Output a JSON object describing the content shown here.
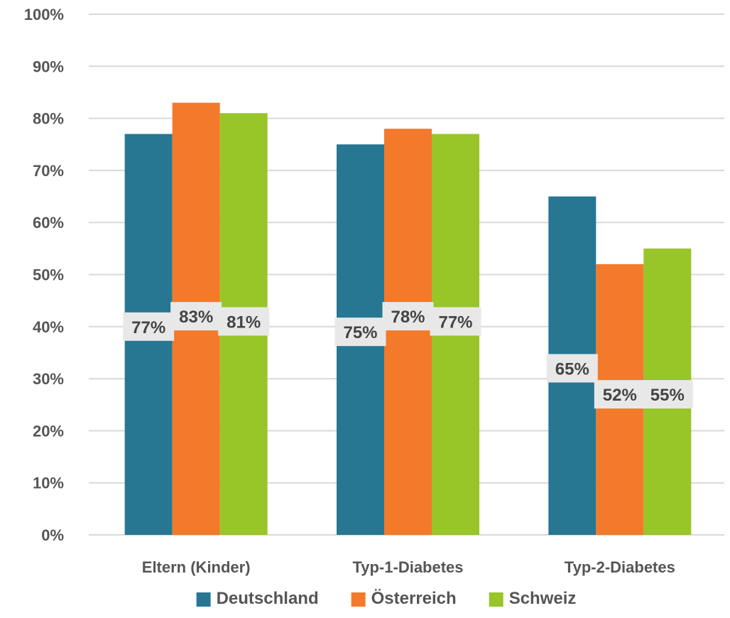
{
  "chart_data": {
    "type": "bar",
    "categories": [
      "Eltern (Kinder)",
      "Typ-1-Diabetes",
      "Typ-2-Diabetes"
    ],
    "series": [
      {
        "name": "Deutschland",
        "values": [
          77,
          75,
          65
        ],
        "color": "#277793",
        "labels": [
          "77%",
          "75%",
          "65%"
        ]
      },
      {
        "name": "Österreich",
        "values": [
          83,
          78,
          52
        ],
        "color": "#f27a2a",
        "labels": [
          "83%",
          "78%",
          "52%"
        ]
      },
      {
        "name": "Schweiz",
        "values": [
          81,
          77,
          55
        ],
        "color": "#98c527",
        "labels": [
          "81%",
          "77%",
          "55%"
        ]
      }
    ],
    "yticks": [
      "0%",
      "10%",
      "20%",
      "30%",
      "40%",
      "50%",
      "60%",
      "70%",
      "80%",
      "90%",
      "100%"
    ],
    "ylim": [
      0,
      100
    ],
    "grid": true,
    "legend": "bottom",
    "label_placement": [
      [
        40,
        42,
        41
      ],
      [
        39,
        42,
        41
      ],
      [
        32,
        27,
        27
      ]
    ],
    "colors": {
      "grid": "#d9d9d9",
      "text": "#555555",
      "label_bg": "#e8e8e8"
    }
  }
}
